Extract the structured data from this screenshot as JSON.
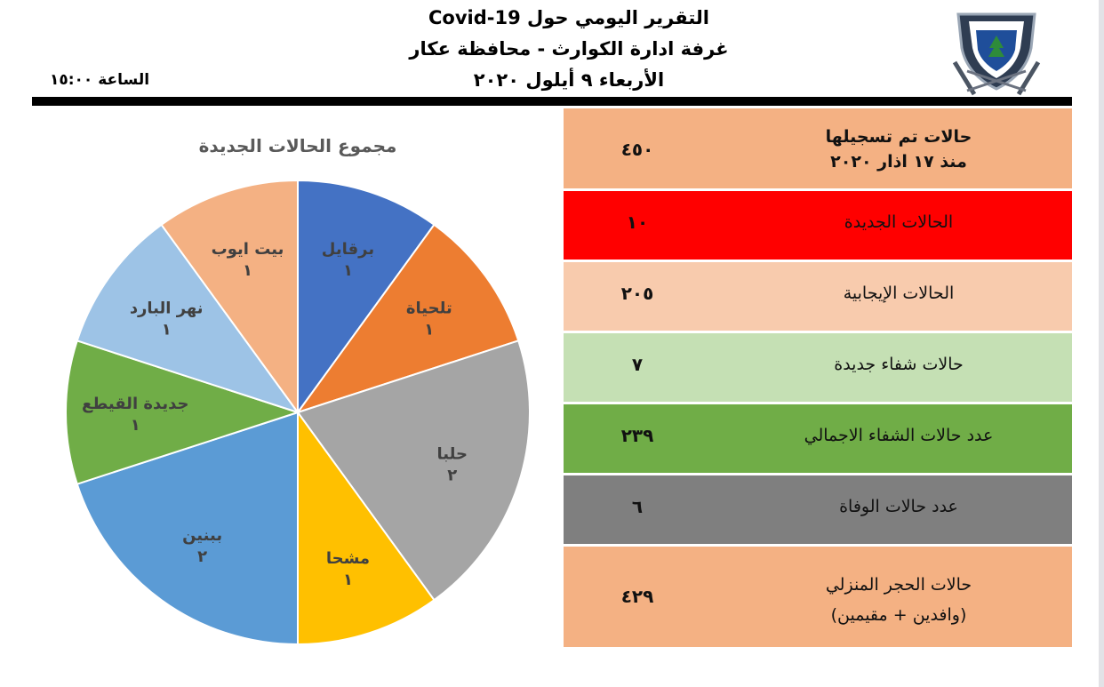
{
  "header": {
    "line1": "التقرير اليومي حول Covid-19",
    "line2": "غرفة ادارة الكوارث - محافظة عكار",
    "line3": "الأربعاء ٩ أيلول ٢٠٢٠",
    "time": "الساعة ١٥:٠٠"
  },
  "stats": [
    {
      "label": "حالات تم تسجيلها",
      "label2": "منذ  ١٧ اذار ٢٠٢٠",
      "value": "٤٥٠",
      "color": "#f4b183"
    },
    {
      "label": "الحالات الجديدة",
      "value": "١٠",
      "color": "#ff0000"
    },
    {
      "label": "الحالات الإيجابية",
      "value": "٢٠٥",
      "color": "#f8cbad"
    },
    {
      "label": "حالات شفاء جديدة",
      "value": "٧",
      "color": "#c5e0b4"
    },
    {
      "label": "عدد حالات الشفاء الاجمالي",
      "value": "٢٣٩",
      "color": "#70ad47"
    },
    {
      "label": "عدد حالات الوفاة",
      "value": "٦",
      "color": "#7f7f7f"
    },
    {
      "label": "حالات الحجر المنزلي",
      "label2": "(وافدين + مقيمين)",
      "value": "٤٢٩",
      "color": "#f4b183"
    }
  ],
  "chart_data": {
    "type": "pie",
    "title": "مجموع الحالات الجديدة",
    "slices": [
      {
        "name": "برقايل",
        "value": 1,
        "label_value": "١",
        "color": "#4472c4"
      },
      {
        "name": "تلحياة",
        "value": 1,
        "label_value": "١",
        "color": "#ed7d31"
      },
      {
        "name": "حلبا",
        "value": 2,
        "label_value": "٢",
        "color": "#a5a5a5"
      },
      {
        "name": "مشحا",
        "value": 1,
        "label_value": "١",
        "color": "#ffc000"
      },
      {
        "name": "ببنين",
        "value": 2,
        "label_value": "٢",
        "color": "#5b9bd5"
      },
      {
        "name": "جديدة القيطع",
        "value": 1,
        "label_value": "١",
        "color": "#70ad47"
      },
      {
        "name": "نهر البارد",
        "value": 1,
        "label_value": "١",
        "color": "#9dc3e6"
      },
      {
        "name": "بيت ايوب",
        "value": 1,
        "label_value": "١",
        "color": "#f4b183"
      }
    ]
  }
}
